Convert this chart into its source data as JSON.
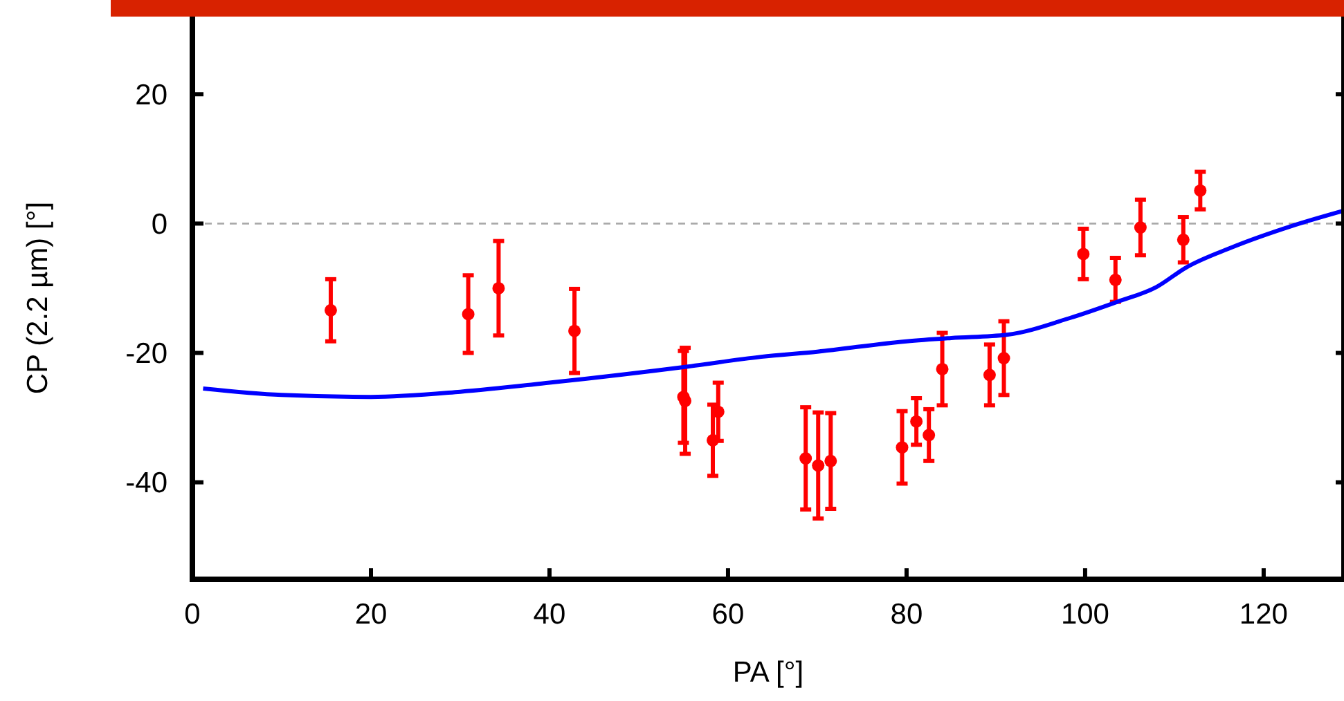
{
  "chart_data": {
    "type": "scatter",
    "xlabel": "PA [°]",
    "ylabel": "CP (2.2 µm) [°]",
    "xlim": [
      0,
      129
    ],
    "ylim": [
      -55,
      32
    ],
    "xticks": [
      0,
      20,
      40,
      60,
      80,
      100,
      120
    ],
    "yticks": [
      -40,
      -20,
      0,
      20
    ],
    "grid": false,
    "marker": "circle",
    "ref_lines": [
      {
        "axis": "y",
        "value": 0,
        "color": "#aaaaaa",
        "line_style": "dashed"
      }
    ],
    "series": [
      {
        "color": "#ff0000",
        "x": [
          15.5,
          30.9,
          34.3,
          42.8,
          55.0,
          55.2,
          58.3,
          58.9,
          68.7,
          70.1,
          71.5,
          79.5,
          81.1,
          82.5,
          84.0,
          89.3,
          90.9,
          99.8,
          103.4,
          106.2,
          111.0,
          112.9
        ],
        "values": [
          -13.4,
          -14.0,
          -10.0,
          -16.6,
          -26.8,
          -27.4,
          -33.5,
          -29.1,
          -36.3,
          -37.4,
          -36.7,
          -34.6,
          -30.6,
          -32.7,
          -22.5,
          -23.4,
          -20.8,
          -4.7,
          -8.7,
          -0.6,
          -2.5,
          5.1
        ],
        "errors": [
          4.8,
          6,
          7.3,
          6.5,
          7.1,
          8.2,
          5.5,
          4.5,
          7.9,
          8.2,
          7.4,
          5.6,
          3.6,
          4,
          5.6,
          4.7,
          5.7,
          3.9,
          3.4,
          4.3,
          3.5,
          2.9
        ]
      },
      {
        "type": "line",
        "color": "#0000ff",
        "marker": "none",
        "line_style": "solid",
        "x": [
          1.2,
          10,
          20,
          30,
          40,
          55.5,
          63.7,
          70,
          80,
          85,
          91.2,
          98.3,
          103.6,
          108,
          111.3,
          116.4,
          123.1,
          129
        ],
        "values": [
          -25.5,
          -26.5,
          -26.8,
          -26.0,
          -24.6,
          -22.1,
          -20.6,
          -19.8,
          -18.2,
          -17.7,
          -17.2,
          -14.6,
          -12.1,
          -9.8,
          -6.8,
          -3.7,
          -0.4,
          2.0
        ]
      }
    ]
  }
}
